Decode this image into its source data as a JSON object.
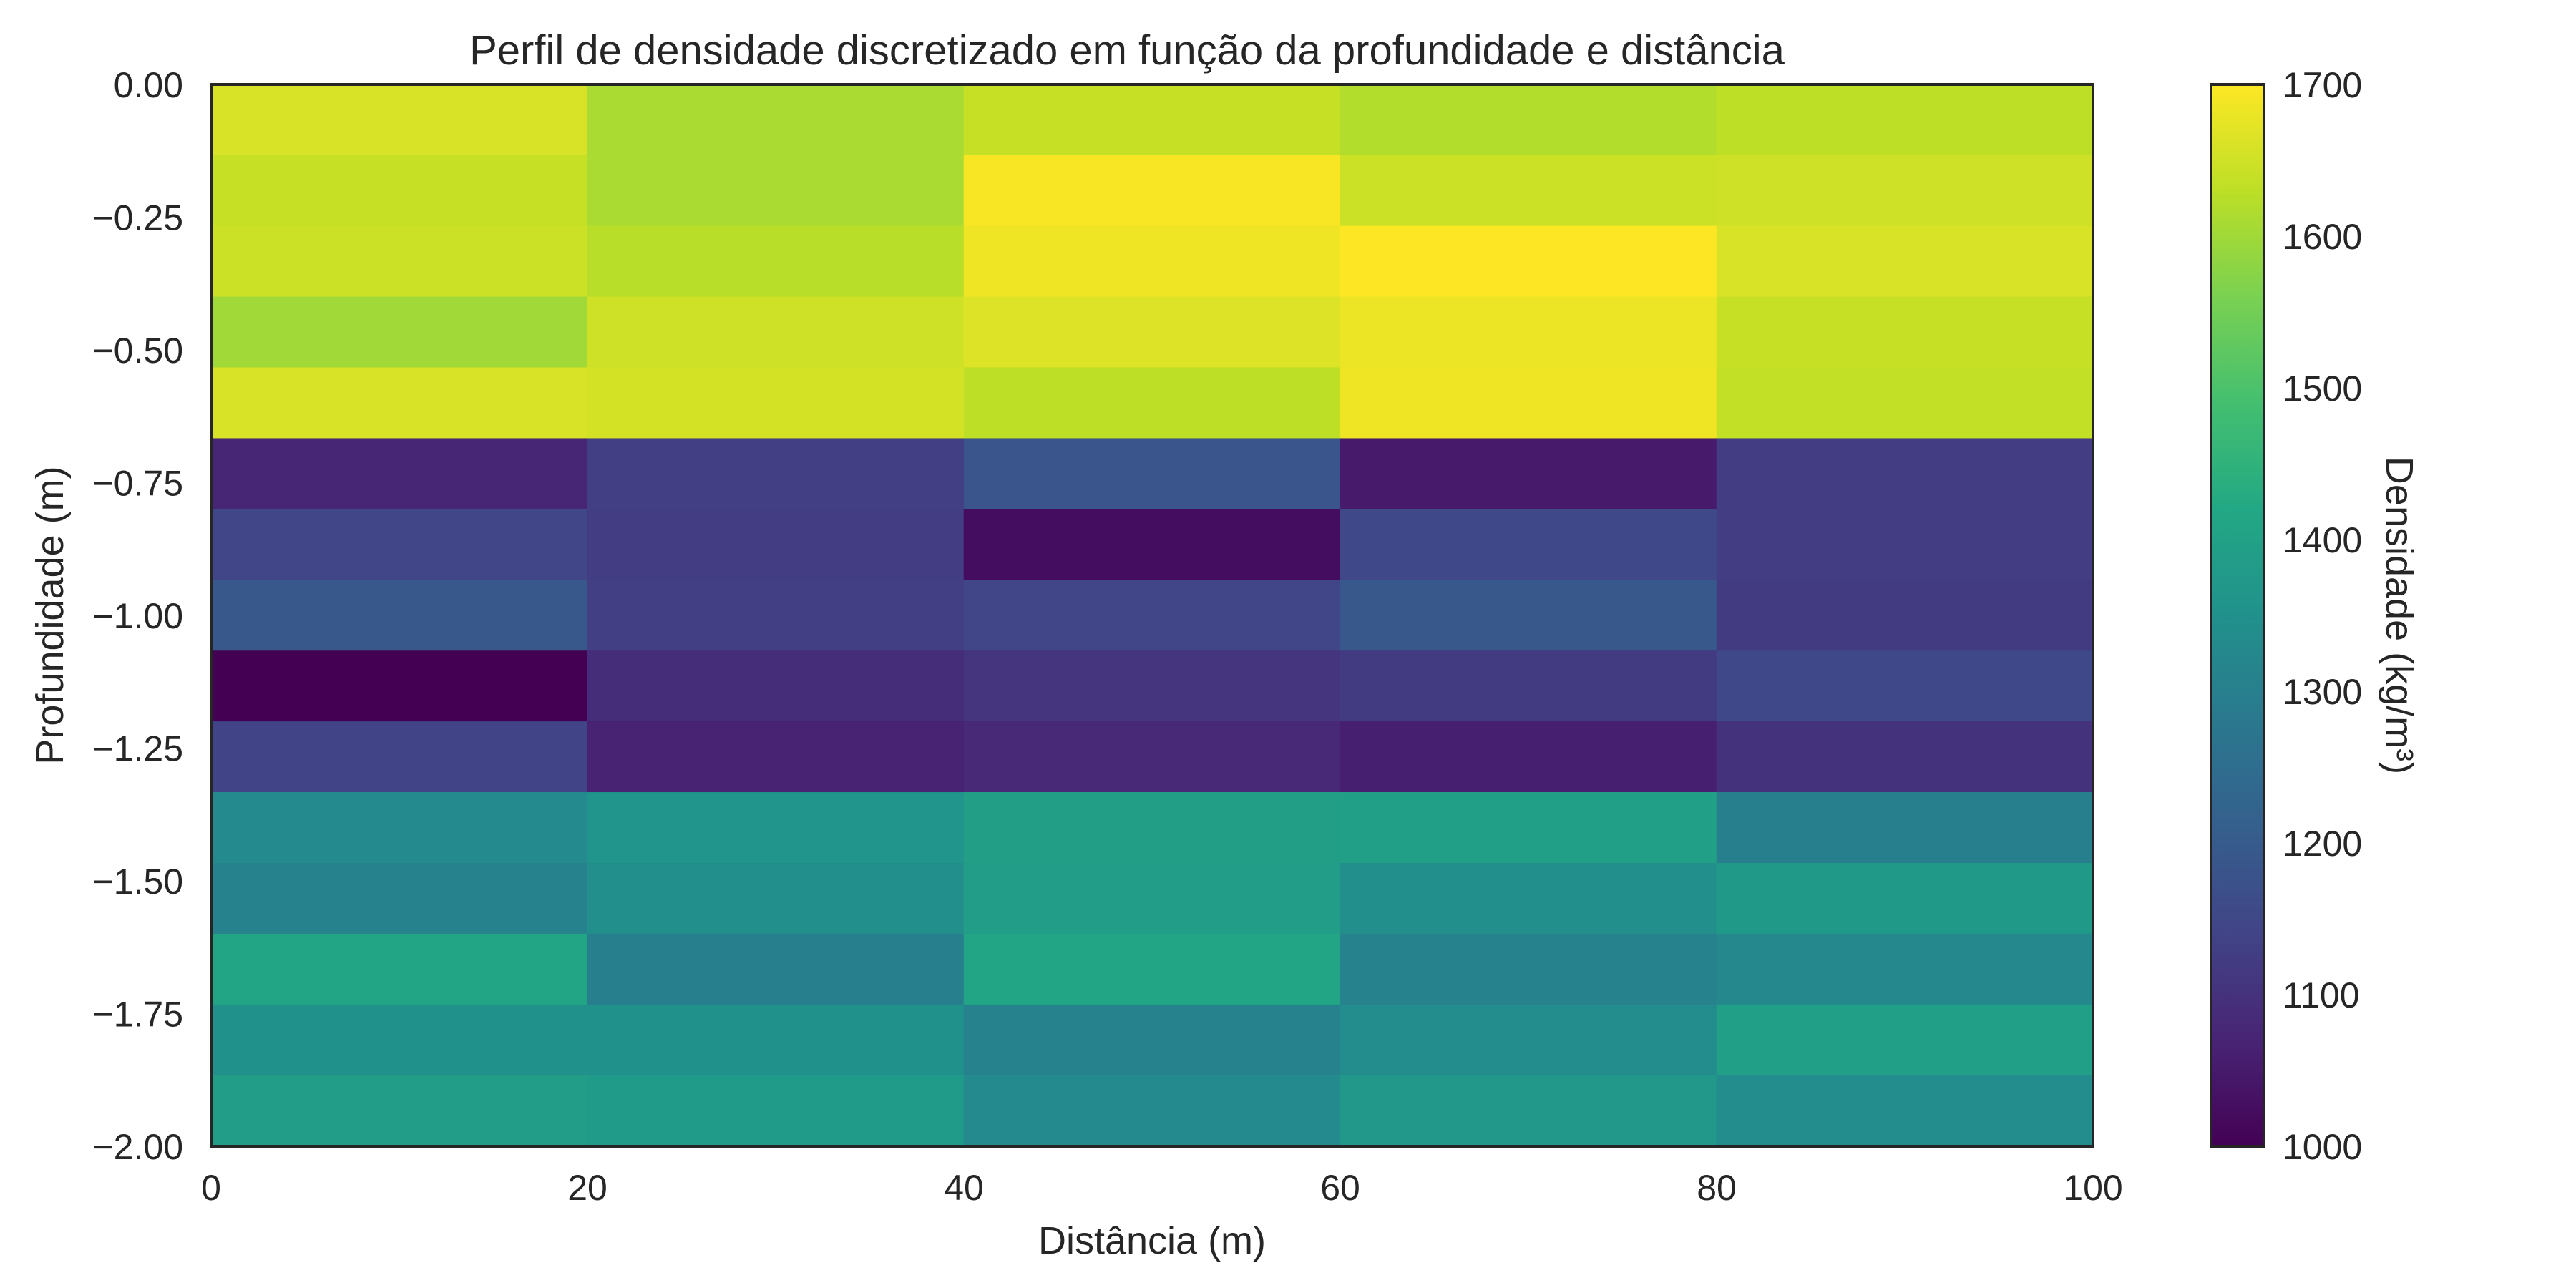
{
  "chart_data": {
    "type": "heatmap",
    "title": "Perfil de densidade discretizado em função da profundidade e distância",
    "xlabel": "Distância (m)",
    "ylabel": "Profundidade (m)",
    "colorbar_label": "Densidade (kg/m³)",
    "colormap": "viridis",
    "xlim": [
      0,
      100
    ],
    "ylim": [
      -2.0,
      0.0
    ],
    "clim": [
      1000,
      1700
    ],
    "x_edges": [
      0,
      20,
      40,
      60,
      80,
      100
    ],
    "y_edges": [
      0.0,
      -0.1333,
      -0.2667,
      -0.4,
      -0.5333,
      -0.6667,
      -0.8,
      -0.9333,
      -1.0667,
      -1.2,
      -1.3333,
      -1.4667,
      -1.6,
      -1.7333,
      -1.8667,
      -2.0
    ],
    "x_ticks": [
      0,
      20,
      40,
      60,
      80,
      100
    ],
    "x_tick_labels": [
      "0",
      "20",
      "40",
      "60",
      "80",
      "100"
    ],
    "y_ticks": [
      0.0,
      -0.25,
      -0.5,
      -0.75,
      -1.0,
      -1.25,
      -1.5,
      -1.75,
      -2.0
    ],
    "y_tick_labels": [
      "0.00",
      "−0.25",
      "−0.50",
      "−0.75",
      "−1.00",
      "−1.25",
      "−1.50",
      "−1.75",
      "−2.00"
    ],
    "colorbar_ticks": [
      1000,
      1100,
      1200,
      1300,
      1400,
      1500,
      1600,
      1700
    ],
    "colorbar_tick_labels": [
      "1000",
      "1100",
      "1200",
      "1300",
      "1400",
      "1500",
      "1600",
      "1700"
    ],
    "values": [
      [
        1660,
        1610,
        1640,
        1620,
        1630
      ],
      [
        1640,
        1610,
        1695,
        1645,
        1650
      ],
      [
        1645,
        1625,
        1685,
        1700,
        1660
      ],
      [
        1600,
        1650,
        1665,
        1680,
        1640
      ],
      [
        1660,
        1655,
        1630,
        1685,
        1635
      ],
      [
        1075,
        1130,
        1185,
        1050,
        1125
      ],
      [
        1145,
        1125,
        1025,
        1150,
        1125
      ],
      [
        1190,
        1130,
        1145,
        1190,
        1120
      ],
      [
        1000,
        1090,
        1105,
        1120,
        1150
      ],
      [
        1140,
        1065,
        1080,
        1060,
        1100
      ],
      [
        1330,
        1360,
        1390,
        1395,
        1300
      ],
      [
        1310,
        1345,
        1385,
        1345,
        1375
      ],
      [
        1410,
        1300,
        1410,
        1310,
        1325
      ],
      [
        1350,
        1350,
        1310,
        1335,
        1395
      ],
      [
        1385,
        1380,
        1330,
        1370,
        1340
      ]
    ]
  }
}
